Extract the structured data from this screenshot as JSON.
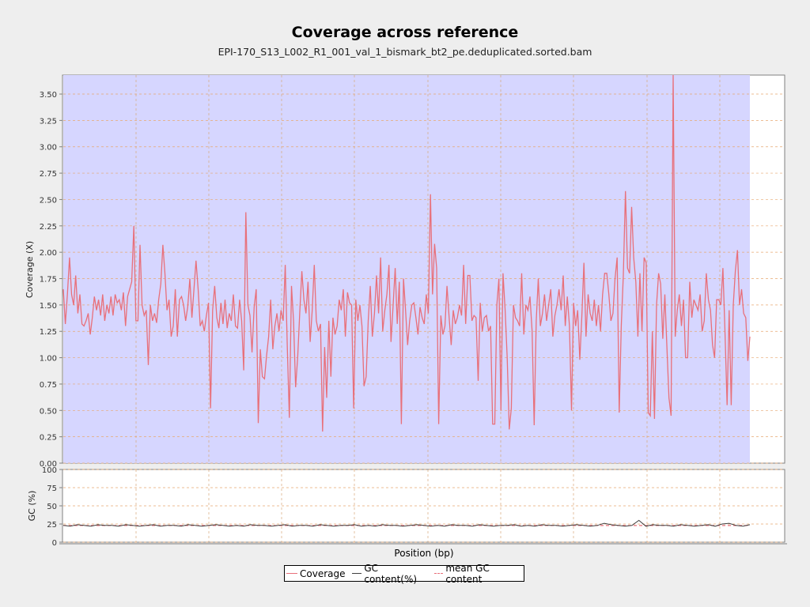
{
  "chart_data": [
    {
      "type": "line",
      "title": "Coverage across reference",
      "subtitle": "EPI-170_S13_L002_R1_001_val_1_bismark_bt2_pe.deduplicated.sorted.bam",
      "xlabel": "Position (bp)",
      "ylabel": "Coverage (X)",
      "ylim": [
        0,
        3.68
      ],
      "yticks": [
        "0.00",
        "0.25",
        "0.50",
        "0.75",
        "1.00",
        "1.25",
        "1.50",
        "1.75",
        "2.00",
        "2.25",
        "2.50",
        "2.75",
        "3.00",
        "3.25",
        "3.50"
      ],
      "grid": true,
      "background_fill_color": "#d6d6ff",
      "series": [
        {
          "name": "Coverage",
          "color": "#e8707a",
          "values": [
            1.65,
            1.32,
            1.6,
            1.95,
            1.6,
            1.5,
            1.78,
            1.42,
            1.6,
            1.32,
            1.3,
            1.35,
            1.42,
            1.22,
            1.38,
            1.58,
            1.45,
            1.55,
            1.4,
            1.6,
            1.35,
            1.5,
            1.42,
            1.58,
            1.4,
            1.6,
            1.52,
            1.55,
            1.45,
            1.62,
            1.3,
            1.58,
            1.65,
            1.72,
            2.25,
            1.35,
            1.35,
            2.07,
            1.5,
            1.4,
            1.45,
            0.93,
            1.5,
            1.35,
            1.42,
            1.33,
            1.55,
            1.7,
            2.07,
            1.8,
            1.45,
            1.55,
            1.2,
            1.3,
            1.65,
            1.2,
            1.55,
            1.58,
            1.5,
            1.35,
            1.48,
            1.75,
            1.38,
            1.65,
            1.92,
            1.65,
            1.3,
            1.35,
            1.25,
            1.4,
            1.52,
            0.52,
            1.45,
            1.68,
            1.38,
            1.28,
            1.52,
            1.32,
            1.55,
            1.28,
            1.42,
            1.35,
            1.6,
            1.3,
            1.28,
            1.55,
            1.35,
            0.88,
            2.38,
            1.5,
            1.4,
            1.05,
            1.48,
            1.65,
            0.38,
            1.08,
            0.82,
            0.8,
            1.02,
            1.2,
            1.55,
            1.08,
            1.3,
            1.42,
            1.25,
            1.45,
            1.35,
            1.88,
            1.1,
            0.43,
            1.68,
            1.35,
            0.72,
            1.0,
            1.42,
            1.82,
            1.55,
            1.42,
            1.72,
            1.15,
            1.45,
            1.88,
            1.35,
            1.25,
            1.32,
            0.3,
            1.1,
            0.62,
            1.35,
            0.82,
            1.38,
            1.22,
            1.3,
            1.55,
            1.45,
            1.65,
            1.2,
            1.62,
            1.52,
            1.5,
            0.52,
            1.55,
            1.35,
            1.5,
            1.3,
            0.73,
            0.82,
            1.35,
            1.68,
            1.2,
            1.42,
            1.78,
            1.42,
            1.95,
            1.25,
            1.45,
            1.6,
            1.88,
            1.15,
            1.5,
            1.85,
            1.32,
            1.72,
            0.37,
            1.75,
            1.45,
            1.12,
            1.35,
            1.5,
            1.52,
            1.38,
            1.22,
            1.48,
            1.38,
            1.32,
            1.6,
            1.42,
            2.55,
            1.6,
            2.08,
            1.85,
            0.37,
            1.4,
            1.22,
            1.3,
            1.68,
            1.38,
            1.12,
            1.45,
            1.32,
            1.38,
            1.5,
            1.4,
            1.88,
            1.32,
            1.78,
            1.78,
            1.35,
            1.4,
            1.38,
            0.78,
            1.52,
            1.25,
            1.38,
            1.4,
            1.25,
            1.3,
            0.37,
            0.37,
            1.5,
            1.75,
            0.5,
            1.8,
            1.45,
            1.0,
            0.32,
            0.52,
            1.5,
            1.38,
            1.35,
            1.3,
            1.8,
            1.22,
            1.5,
            1.45,
            1.58,
            1.25,
            0.36,
            1.35,
            1.75,
            1.3,
            1.42,
            1.6,
            1.35,
            1.5,
            1.65,
            1.2,
            1.4,
            1.5,
            1.65,
            1.45,
            1.78,
            1.3,
            1.58,
            1.3,
            0.5,
            1.52,
            1.3,
            1.45,
            0.98,
            1.4,
            1.9,
            1.2,
            1.6,
            1.42,
            1.35,
            1.55,
            1.3,
            1.5,
            1.25,
            1.6,
            1.8,
            1.8,
            1.6,
            1.35,
            1.42,
            1.75,
            1.95,
            0.48,
            1.3,
            1.78,
            2.58,
            1.85,
            1.8,
            2.43,
            1.95,
            1.72,
            1.2,
            1.8,
            1.25,
            1.95,
            1.9,
            0.48,
            0.45,
            1.25,
            0.42,
            1.5,
            1.8,
            1.7,
            1.18,
            1.6,
            1.1,
            0.62,
            0.45,
            3.68,
            1.2,
            1.45,
            1.6,
            1.3,
            1.55,
            1.0,
            1.0,
            1.72,
            1.38,
            1.55,
            1.5,
            1.45,
            1.6,
            1.25,
            1.35,
            1.8,
            1.55,
            1.45,
            1.12,
            1.0,
            1.55,
            1.55,
            1.5,
            1.85,
            1.25,
            0.55,
            1.45,
            0.55,
            1.5,
            1.82,
            2.02,
            1.5,
            1.65,
            1.42,
            1.38,
            0.97,
            1.2
          ]
        }
      ]
    },
    {
      "type": "line",
      "ylabel": "GC (%)",
      "ylim": [
        0,
        100
      ],
      "yticks": [
        "0",
        "25",
        "50",
        "75",
        "100"
      ],
      "grid": true,
      "series": [
        {
          "name": "GC content(%)",
          "color": "#404040",
          "values": [
            23,
            22,
            24,
            23,
            22,
            24,
            23,
            23,
            22,
            24,
            23,
            22,
            23,
            24,
            22,
            23,
            23,
            22,
            24,
            23,
            22,
            23,
            24,
            23,
            22,
            23,
            22,
            24,
            23,
            23,
            22,
            23,
            24,
            22,
            23,
            23,
            22,
            24,
            23,
            22,
            23,
            23,
            24,
            22,
            23,
            22,
            24,
            23,
            23,
            22,
            23,
            24,
            23,
            22,
            23,
            22,
            24,
            23,
            23,
            22,
            24,
            23,
            22,
            23,
            23,
            24,
            22,
            23,
            22,
            24,
            23,
            23,
            22,
            23,
            24,
            23,
            22,
            23,
            26,
            24,
            23,
            22,
            23,
            30,
            22,
            24,
            23,
            23,
            22,
            24,
            23,
            22,
            23,
            24,
            22,
            25,
            26,
            23,
            22,
            24
          ]
        },
        {
          "name": "mean GC content",
          "color": "#e8707a",
          "value": 23
        }
      ]
    }
  ],
  "legend": {
    "coverage": "Coverage",
    "gc": "GC content(%)",
    "mean_gc": "mean GC content"
  }
}
